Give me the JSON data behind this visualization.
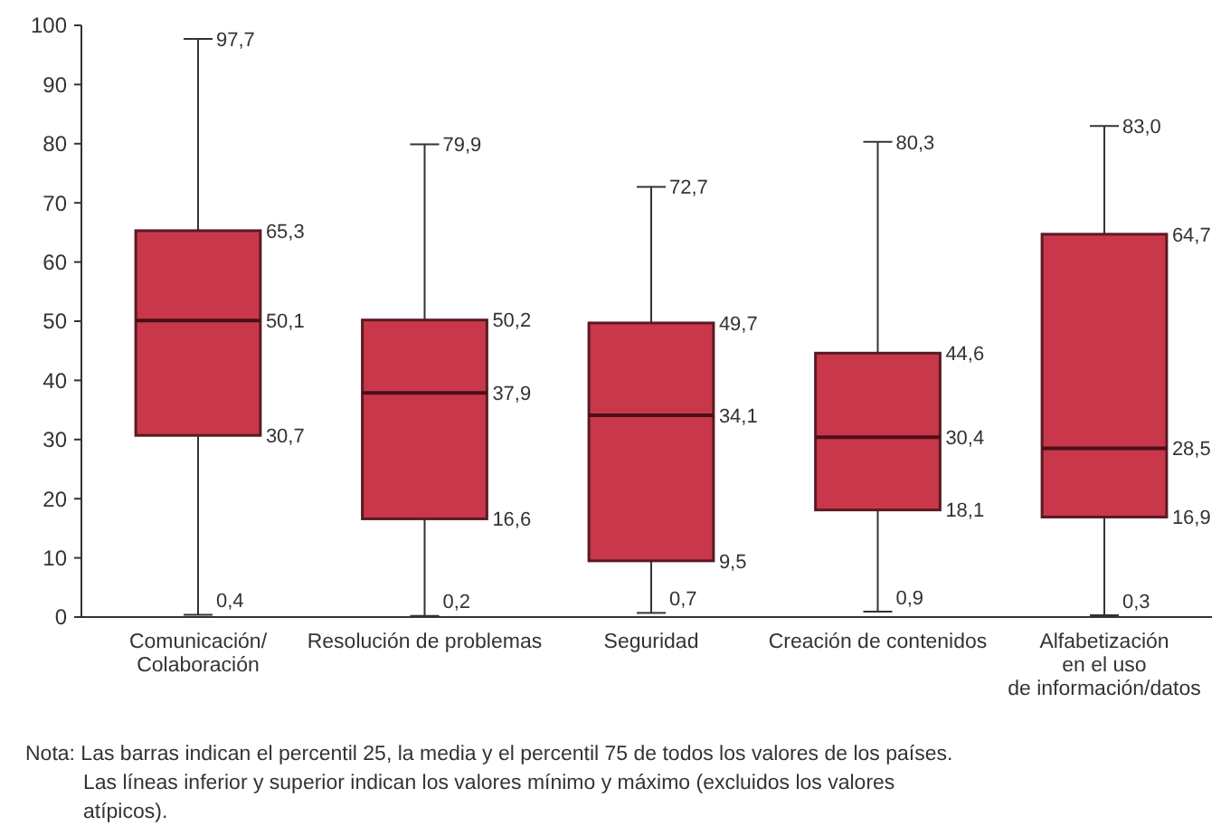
{
  "chart_data": {
    "type": "box",
    "categories": [
      "Comunicación/\nColaboración",
      "Resolución de problemas",
      "Seguridad",
      "Creación de contenidos",
      "Alfabetización\nen el uso\nde información/datos"
    ],
    "color": "#c8384a",
    "boxes": [
      {
        "low": 0.4,
        "q1": 30.7,
        "median": 50.1,
        "q3": 65.3,
        "high": 97.7
      },
      {
        "low": 0.2,
        "q1": 16.6,
        "median": 37.9,
        "q3": 50.2,
        "high": 79.9
      },
      {
        "low": 0.7,
        "q1": 9.5,
        "median": 34.1,
        "q3": 49.7,
        "high": 72.7
      },
      {
        "low": 0.9,
        "q1": 18.1,
        "median": 30.4,
        "q3": 44.6,
        "high": 80.3
      },
      {
        "low": 0.3,
        "q1": 16.9,
        "median": 28.5,
        "q3": 64.7,
        "high": 83.0
      }
    ],
    "ylim": [
      0,
      100
    ],
    "yticks": [
      0,
      10,
      20,
      30,
      40,
      50,
      60,
      70,
      80,
      90,
      100
    ],
    "annotations": [
      "Nota: Las barras indican el percentil 25, la media y el percentil 75 de todos los valores de los países.\nLas líneas inferior y superior indican los valores mínimo y máximo (excluidos los valores\natípicos).",
      {
        "text": "97,7",
        "x": "Comunicación/\nColaboración",
        "y": 97.7
      },
      "65,3",
      "50,1",
      "30,7",
      {
        "text": "0,4",
        "x": "Comunicación/\nColaboración",
        "y": 0.4
      },
      {
        "text": "79,9",
        "x": "Resolución de problemas",
        "y": 79.9
      },
      "50,2",
      "37,9",
      "16,6",
      {
        "text": "0,2",
        "x": "Resolución de problemas",
        "y": 0.2
      },
      {
        "text": "72,7",
        "x": "Seguridad",
        "y": 72.7
      },
      "49,7",
      "34,1",
      "9,5",
      {
        "text": "0,7",
        "x": "Seguridad",
        "y": 0.7
      },
      {
        "text": "80,3",
        "x": "Creación de contenidos",
        "y": 80.3
      },
      "44,6",
      "30,4",
      "18,1",
      {
        "text": "0,9",
        "x": "Creación de contenidos",
        "y": 0.9
      },
      {
        "text": "83,0",
        "x": "Alfabetización\nen el uso\nde información/datos",
        "y": 83.0
      },
      "64,7",
      "28,5",
      "16,9",
      {
        "text": "0,3",
        "x": "Alfabetización\nen el uso\nde información/datos",
        "y": 0.3
      }
    ]
  }
}
